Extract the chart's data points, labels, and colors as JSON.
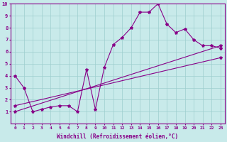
{
  "title": "",
  "xlabel": "Windchill (Refroidissement éolien,°C)",
  "xlim": [
    -0.5,
    23.5
  ],
  "ylim": [
    0,
    10
  ],
  "xticks": [
    0,
    1,
    2,
    3,
    4,
    5,
    6,
    7,
    8,
    9,
    10,
    11,
    12,
    13,
    14,
    15,
    16,
    17,
    18,
    19,
    20,
    21,
    22,
    23
  ],
  "yticks": [
    1,
    2,
    3,
    4,
    5,
    6,
    7,
    8,
    9,
    10
  ],
  "background_color": "#c8eaea",
  "grid_color": "#9ecece",
  "line_color": "#880088",
  "line1_x": [
    0,
    1,
    2,
    3,
    4,
    5,
    6,
    7,
    8,
    9,
    10,
    11,
    12,
    13,
    14,
    15,
    16,
    17,
    18,
    19,
    20,
    21,
    22,
    23
  ],
  "line1_y": [
    4,
    3,
    1,
    1.2,
    1.4,
    1.5,
    1.5,
    1.0,
    4.5,
    1.2,
    4.7,
    6.6,
    7.2,
    8.0,
    9.3,
    9.3,
    10,
    8.3,
    7.6,
    7.9,
    7.0,
    6.5,
    6.5,
    6.3
  ],
  "line2_x": [
    0,
    23
  ],
  "line2_y": [
    1.0,
    6.5
  ],
  "line3_x": [
    0,
    23
  ],
  "line3_y": [
    1.5,
    5.5
  ]
}
